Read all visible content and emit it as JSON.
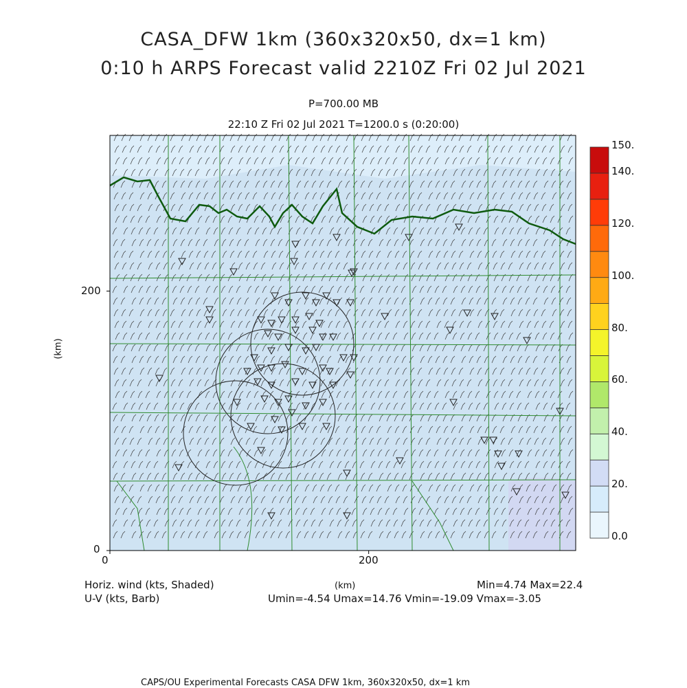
{
  "header": {
    "title_line1": "CASA_DFW 1km (360x320x50, dx=1 km)",
    "title_line2": "0:10 h ARPS Forecast valid 2210Z Fri 02 Jul 2021",
    "level": "P=700.00 MB",
    "time_info": "22:10 Z Fri 02 Jul 2021   T=1200.0 s (0:20:00)"
  },
  "axes": {
    "x_label": "(km)",
    "y_label": "(km)",
    "x_ticks": [
      {
        "value": 0,
        "label": "0"
      },
      {
        "value": 200,
        "label": "200"
      }
    ],
    "y_ticks": [
      {
        "value": 0,
        "label": "0"
      },
      {
        "value": 200,
        "label": "200"
      }
    ],
    "x_range": [
      0,
      360
    ],
    "y_range": [
      0,
      320
    ]
  },
  "colorbar": {
    "labels": [
      "0.0",
      "20.",
      "40.",
      "60.",
      "80.",
      "100.",
      "120.",
      "140.",
      "150."
    ],
    "levels": [
      0,
      10,
      20,
      30,
      40,
      50,
      60,
      70,
      80,
      90,
      100,
      110,
      120,
      130,
      140,
      150
    ],
    "colors": [
      "#eaf6fd",
      "#d6ecfb",
      "#d2dcf5",
      "#d3f8d3",
      "#c2f0ac",
      "#b0e86a",
      "#d8f43a",
      "#f4f42a",
      "#ffd21e",
      "#ffaa14",
      "#ff8a10",
      "#ff6a0a",
      "#ff3c08",
      "#e82010",
      "#c80c0c"
    ]
  },
  "footer": {
    "left_line1": "Horiz. wind (kts, Shaded)",
    "left_line2": "U-V (kts, Barb)",
    "center_label": "(km)",
    "right_line1": "Min=4.74 Max=22.4",
    "right_line2": "Umin=-4.54 Umax=14.76 Vmin=-19.09 Vmax=-3.05",
    "credit": "CAPS/OU Experimental Forecasts  CASA DFW 1km, 360x320x50, dx=1 km"
  },
  "map": {
    "background_color": "#cfe3f3",
    "county_line_color": "#2e8b2e",
    "state_line_color": "#0e5a0e",
    "radar_ring_color": "#222222"
  }
}
